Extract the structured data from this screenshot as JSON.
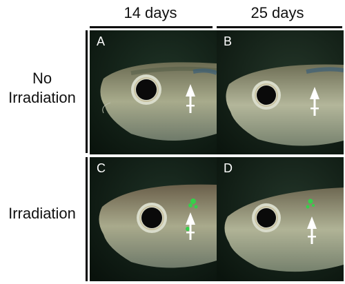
{
  "columns": [
    {
      "label": "14 days"
    },
    {
      "label": "25 days"
    }
  ],
  "rows": [
    {
      "label_line1": "No",
      "label_line2": "Irradiation"
    },
    {
      "label": "Irradiation"
    }
  ],
  "panels": [
    {
      "letter": "A",
      "green_marks": false
    },
    {
      "letter": "B",
      "green_marks": false
    },
    {
      "letter": "C",
      "green_marks": true
    },
    {
      "letter": "D",
      "green_marks": true
    }
  ],
  "colors": {
    "background": "#0e1a12",
    "fish_body": "#8a8f70",
    "eye_ring": "#d9dccb",
    "pupil": "#0a0a0a",
    "arrow": "#ffffff",
    "fluorescence": "#35d04a"
  }
}
